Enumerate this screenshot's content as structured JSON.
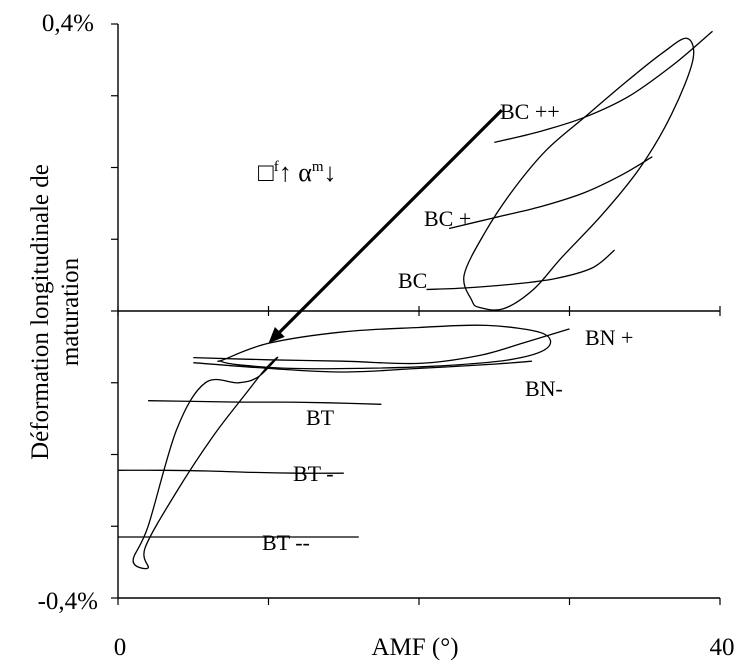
{
  "chart_data": {
    "type": "line",
    "title": "",
    "xlabel": "AMF (°)",
    "ylabel_lines": [
      "Déformation longitudinale de",
      "maturation"
    ],
    "xlim": [
      0,
      40
    ],
    "ylim": [
      -0.4,
      0.4
    ],
    "x_tick_labels": [
      {
        "value": 0,
        "label": "0"
      },
      {
        "value": 40,
        "label": "40"
      }
    ],
    "y_tick_labels": [
      {
        "value": 0.4,
        "label": "0,4%"
      },
      {
        "value": -0.4,
        "label": "-0,4%"
      }
    ],
    "y_minor_ticks": [
      -0.3,
      -0.2,
      -0.1,
      0,
      0.1,
      0.2,
      0.3
    ],
    "x_minor_ticks": [
      10,
      20,
      30
    ],
    "zero_line": true,
    "arrow": {
      "from": [
        25.5,
        0.28
      ],
      "to": [
        10,
        -0.045
      ],
      "label_prefix": "□",
      "label_sup1": "f",
      "label_mid": "↑  α",
      "label_sup2": "m",
      "label_end": "↓"
    },
    "series": [
      {
        "name": "BC ++",
        "x": [
          25,
          28,
          31,
          34,
          37,
          39.5
        ],
        "y": [
          0.235,
          0.25,
          0.27,
          0.3,
          0.345,
          0.39
        ]
      },
      {
        "name": "BC +",
        "x": [
          22,
          25,
          28,
          31,
          33.5,
          35.5
        ],
        "y": [
          0.115,
          0.13,
          0.145,
          0.165,
          0.19,
          0.215
        ]
      },
      {
        "name": "BC",
        "x": [
          20.5,
          23,
          26,
          29,
          31.5,
          33
        ],
        "y": [
          0.03,
          0.032,
          0.037,
          0.045,
          0.06,
          0.085
        ]
      },
      {
        "name": "BN +",
        "x": [
          5,
          10,
          15,
          20,
          24,
          27,
          30
        ],
        "y": [
          -0.065,
          -0.068,
          -0.07,
          -0.073,
          -0.062,
          -0.044,
          -0.025
        ]
      },
      {
        "name": "BN-",
        "x": [
          5,
          10,
          15,
          20,
          25,
          27.5
        ],
        "y": [
          -0.072,
          -0.08,
          -0.085,
          -0.08,
          -0.074,
          -0.07
        ]
      },
      {
        "name": "BT",
        "x": [
          2,
          5,
          8,
          11,
          14,
          17.5
        ],
        "y": [
          -0.125,
          -0.126,
          -0.127,
          -0.127,
          -0.128,
          -0.13
        ]
      },
      {
        "name": "BT -",
        "x": [
          0,
          3,
          6,
          9,
          12,
          15
        ],
        "y": [
          -0.222,
          -0.222,
          -0.223,
          -0.225,
          -0.226,
          -0.226
        ]
      },
      {
        "name": "BT --",
        "x": [
          0,
          3,
          6,
          9,
          12,
          16
        ],
        "y": [
          -0.315,
          -0.315,
          -0.315,
          -0.315,
          -0.315,
          -0.315
        ]
      }
    ],
    "envelopes": [
      {
        "name": "",
        "x": [
          23.5,
          23,
          24.4,
          26.3,
          28.5,
          31,
          33.8,
          36.2,
          37.8,
          38.2,
          36.8,
          34.7,
          32.2,
          29.5,
          27.6,
          25.6,
          24
        ],
        "y": [
          0.015,
          0.05,
          0.11,
          0.17,
          0.225,
          0.27,
          0.32,
          0.36,
          0.38,
          0.35,
          0.275,
          0.2,
          0.135,
          0.075,
          0.03,
          0.003,
          0.005
        ]
      },
      {
        "name": "",
        "x": [
          7,
          10,
          15,
          20,
          24.5,
          28.2,
          28.5,
          26,
          21,
          16,
          11.5,
          8,
          6.8
        ],
        "y": [
          -0.068,
          -0.045,
          -0.029,
          -0.023,
          -0.02,
          -0.031,
          -0.052,
          -0.068,
          -0.077,
          -0.08,
          -0.08,
          -0.075,
          -0.07
        ]
      },
      {
        "name": "",
        "x": [
          2,
          1.8,
          3.8,
          6.3,
          8.5,
          9.9,
          10.6,
          9.3,
          8,
          5.8,
          3.9,
          2,
          1
        ],
        "y": [
          -0.358,
          -0.33,
          -0.255,
          -0.175,
          -0.115,
          -0.078,
          -0.065,
          -0.092,
          -0.1,
          -0.1,
          -0.165,
          -0.3,
          -0.348
        ]
      }
    ]
  }
}
